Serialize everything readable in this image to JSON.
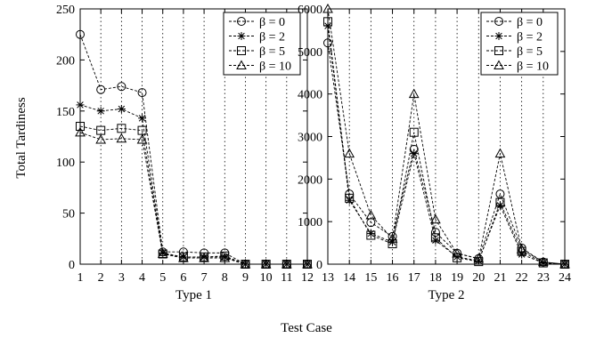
{
  "figure": {
    "ylabel": "Total Tardiness",
    "xlabel": "Test Case"
  },
  "chart_data": [
    {
      "type": "line",
      "subtitle": "Type 1",
      "x": [
        1,
        2,
        3,
        4,
        5,
        6,
        7,
        8,
        9,
        10,
        11,
        12
      ],
      "xlim": [
        1,
        12
      ],
      "ylim": [
        0,
        250
      ],
      "yticks": [
        0,
        50,
        100,
        150,
        200,
        250
      ],
      "grid": "vertical-dotted",
      "legend_position": "top-right",
      "series": [
        {
          "name": "β = 0",
          "marker": "circle",
          "values": [
            225,
            171,
            174,
            168,
            12,
            12,
            11,
            11,
            0,
            0,
            0,
            0
          ]
        },
        {
          "name": "β = 2",
          "marker": "asterisk",
          "values": [
            156,
            150,
            152,
            143,
            11,
            7,
            7,
            7,
            0,
            0,
            0,
            0
          ]
        },
        {
          "name": "β = 5",
          "marker": "square",
          "values": [
            135,
            131,
            133,
            131,
            10,
            7,
            7,
            8,
            0,
            0,
            0,
            0
          ]
        },
        {
          "name": "β = 10",
          "marker": "triangle",
          "values": [
            129,
            122,
            123,
            122,
            10,
            6,
            6,
            6,
            0,
            0,
            0,
            0
          ]
        }
      ]
    },
    {
      "type": "line",
      "subtitle": "Type 2",
      "x": [
        13,
        14,
        15,
        16,
        17,
        18,
        19,
        20,
        21,
        22,
        23,
        24
      ],
      "xlim": [
        13,
        24
      ],
      "ylim": [
        0,
        6000
      ],
      "yticks": [
        0,
        1000,
        2000,
        3000,
        4000,
        5000,
        6000
      ],
      "grid": "vertical-dotted",
      "legend_position": "top-right",
      "series": [
        {
          "name": "β = 0",
          "marker": "circle",
          "values": [
            5200,
            1650,
            980,
            650,
            2700,
            750,
            260,
            130,
            1650,
            380,
            50,
            0
          ]
        },
        {
          "name": "β = 2",
          "marker": "asterisk",
          "values": [
            5600,
            1500,
            720,
            520,
            2600,
            560,
            170,
            80,
            1380,
            230,
            30,
            0
          ]
        },
        {
          "name": "β = 5",
          "marker": "square",
          "values": [
            5700,
            1550,
            680,
            480,
            3100,
            620,
            150,
            60,
            1450,
            300,
            30,
            0
          ]
        },
        {
          "name": "β = 10",
          "marker": "triangle",
          "values": [
            6000,
            2600,
            1150,
            600,
            4000,
            1050,
            250,
            130,
            2600,
            350,
            50,
            0
          ]
        }
      ]
    }
  ]
}
